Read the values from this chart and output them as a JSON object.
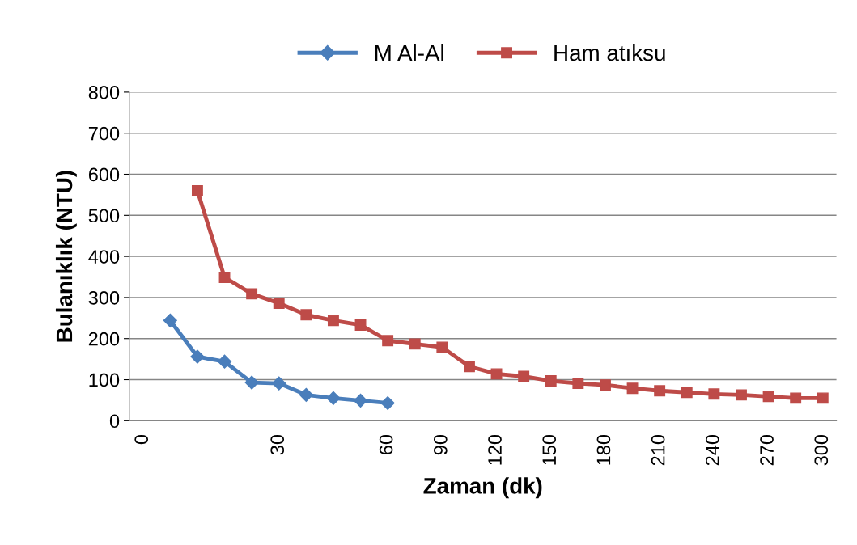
{
  "chart_data": {
    "type": "line",
    "xlabel": "Zaman (dk)",
    "ylabel": "Bulanıklık (NTU)",
    "categories": [
      "0",
      null,
      null,
      null,
      null,
      "30",
      null,
      null,
      null,
      "60",
      null,
      "90",
      null,
      "120",
      null,
      "150",
      null,
      "180",
      null,
      "210",
      null,
      "240",
      null,
      "270",
      null,
      "300"
    ],
    "series": [
      {
        "name": "M Al-Al",
        "color": "#4a7ebb",
        "marker": "diamond",
        "values": [
          null,
          244,
          156,
          144,
          93,
          91,
          63,
          55,
          49,
          43,
          null,
          null,
          null,
          null,
          null,
          null,
          null,
          null,
          null,
          null,
          null,
          null,
          null,
          null,
          null,
          null
        ]
      },
      {
        "name": "Ham atıksu",
        "color": "#be4b48",
        "marker": "square",
        "values": [
          null,
          null,
          560,
          349,
          309,
          286,
          258,
          244,
          233,
          195,
          187,
          179,
          132,
          114,
          108,
          97,
          91,
          87,
          79,
          73,
          69,
          65,
          63,
          59,
          55,
          55
        ]
      }
    ],
    "ylim": [
      0,
      800
    ],
    "yticks": [
      0,
      100,
      200,
      300,
      400,
      500,
      600,
      700,
      800
    ],
    "grid": "y",
    "legend": "top",
    "line_style": "solid"
  }
}
